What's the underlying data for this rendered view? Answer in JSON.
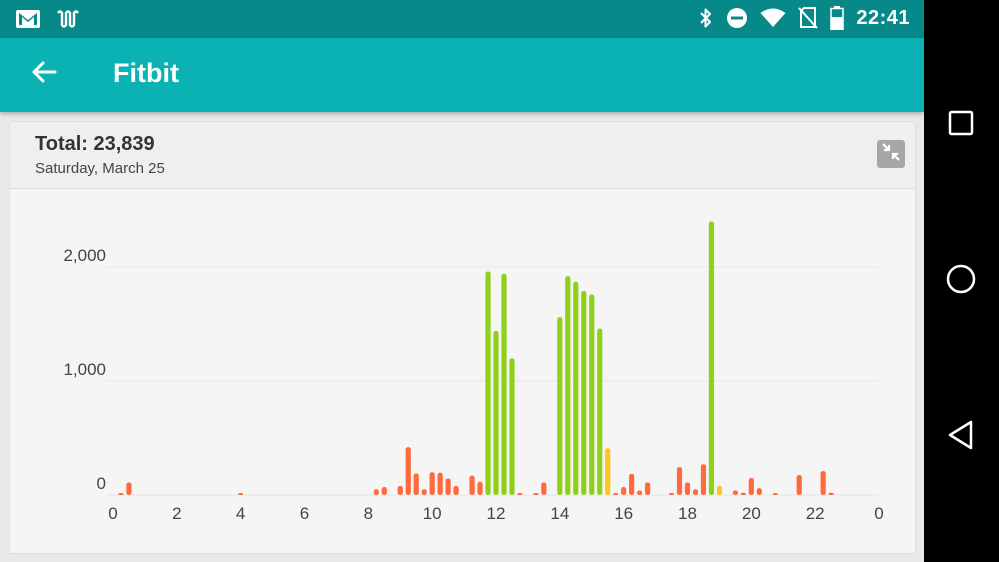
{
  "status_bar": {
    "time": "22:41",
    "left_icons": [
      "gmail-icon",
      "newspaper-icon"
    ],
    "right_icons": [
      "bluetooth-icon",
      "do-not-disturb-icon",
      "wifi-icon",
      "no-sim-icon",
      "battery-icon"
    ]
  },
  "app_bar": {
    "title": "Fitbit",
    "back_icon": "arrow-back-icon"
  },
  "card": {
    "total": "Total: 23,839",
    "date": "Saturday, March 25",
    "collapse_icon": "collapse-icon"
  },
  "colors": {
    "status_bar": "#07898a",
    "app_bar": "#0bb2b3",
    "low": "#ff6a3d",
    "moderate": "#ffc61e",
    "high": "#8fd11a"
  },
  "chart_data": {
    "type": "bar",
    "x_tick_labels": [
      "0",
      "2",
      "4",
      "6",
      "8",
      "10",
      "12",
      "14",
      "16",
      "18",
      "20",
      "22",
      "0"
    ],
    "y_tick_labels": [
      "0",
      "1,000",
      "2,000"
    ],
    "x_range": [
      0,
      24
    ],
    "ylim": [
      0,
      2400
    ],
    "grid": true,
    "bars": [
      {
        "x": 0.25,
        "value": 15,
        "level": "low"
      },
      {
        "x": 0.5,
        "value": 110,
        "level": "low"
      },
      {
        "x": 4.0,
        "value": 8,
        "level": "low"
      },
      {
        "x": 8.25,
        "value": 50,
        "level": "low"
      },
      {
        "x": 8.5,
        "value": 70,
        "level": "low"
      },
      {
        "x": 9.0,
        "value": 80,
        "level": "low"
      },
      {
        "x": 9.25,
        "value": 420,
        "level": "low"
      },
      {
        "x": 9.5,
        "value": 190,
        "level": "low"
      },
      {
        "x": 9.75,
        "value": 50,
        "level": "low"
      },
      {
        "x": 10.0,
        "value": 200,
        "level": "low"
      },
      {
        "x": 10.25,
        "value": 195,
        "level": "low"
      },
      {
        "x": 10.5,
        "value": 145,
        "level": "low"
      },
      {
        "x": 10.75,
        "value": 80,
        "level": "low"
      },
      {
        "x": 11.25,
        "value": 170,
        "level": "low"
      },
      {
        "x": 11.5,
        "value": 115,
        "level": "low"
      },
      {
        "x": 11.75,
        "value": 1960,
        "level": "high"
      },
      {
        "x": 12.0,
        "value": 1440,
        "level": "high"
      },
      {
        "x": 12.25,
        "value": 1940,
        "level": "high"
      },
      {
        "x": 12.5,
        "value": 1200,
        "level": "high"
      },
      {
        "x": 12.75,
        "value": 10,
        "level": "low"
      },
      {
        "x": 13.25,
        "value": 15,
        "level": "low"
      },
      {
        "x": 13.5,
        "value": 110,
        "level": "low"
      },
      {
        "x": 14.0,
        "value": 1560,
        "level": "high"
      },
      {
        "x": 14.25,
        "value": 1920,
        "level": "high"
      },
      {
        "x": 14.5,
        "value": 1870,
        "level": "high"
      },
      {
        "x": 14.75,
        "value": 1790,
        "level": "high"
      },
      {
        "x": 15.0,
        "value": 1760,
        "level": "high"
      },
      {
        "x": 15.25,
        "value": 1460,
        "level": "high"
      },
      {
        "x": 15.5,
        "value": 410,
        "level": "moderate"
      },
      {
        "x": 15.75,
        "value": 10,
        "level": "low"
      },
      {
        "x": 16.0,
        "value": 70,
        "level": "low"
      },
      {
        "x": 16.25,
        "value": 185,
        "level": "low"
      },
      {
        "x": 16.5,
        "value": 40,
        "level": "low"
      },
      {
        "x": 16.75,
        "value": 110,
        "level": "low"
      },
      {
        "x": 17.5,
        "value": 15,
        "level": "low"
      },
      {
        "x": 17.75,
        "value": 245,
        "level": "low"
      },
      {
        "x": 18.0,
        "value": 110,
        "level": "low"
      },
      {
        "x": 18.25,
        "value": 50,
        "level": "low"
      },
      {
        "x": 18.5,
        "value": 270,
        "level": "low"
      },
      {
        "x": 18.75,
        "value": 2400,
        "level": "high"
      },
      {
        "x": 19.0,
        "value": 80,
        "level": "moderate"
      },
      {
        "x": 19.5,
        "value": 40,
        "level": "low"
      },
      {
        "x": 19.75,
        "value": 20,
        "level": "low"
      },
      {
        "x": 20.0,
        "value": 150,
        "level": "low"
      },
      {
        "x": 20.25,
        "value": 60,
        "level": "low"
      },
      {
        "x": 20.75,
        "value": 15,
        "level": "low"
      },
      {
        "x": 21.5,
        "value": 175,
        "level": "low"
      },
      {
        "x": 22.25,
        "value": 210,
        "level": "low"
      },
      {
        "x": 22.5,
        "value": 20,
        "level": "low"
      }
    ]
  },
  "nav_bar": {
    "buttons": [
      "recents-square-icon",
      "home-circle-icon",
      "back-triangle-icon"
    ]
  }
}
